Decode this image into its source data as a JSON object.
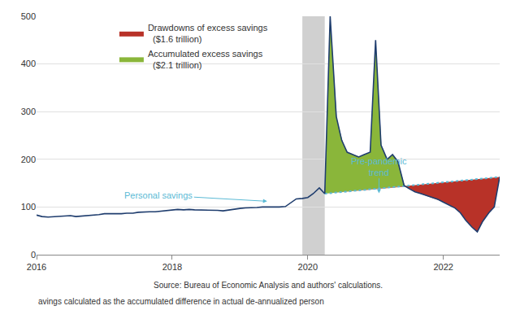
{
  "chart_data": {
    "type": "line",
    "x": [
      2016.0,
      2016.08,
      2016.17,
      2016.25,
      2016.33,
      2016.42,
      2016.5,
      2016.58,
      2016.67,
      2016.75,
      2016.83,
      2016.92,
      2017.0,
      2017.08,
      2017.17,
      2017.25,
      2017.33,
      2017.42,
      2017.5,
      2017.58,
      2017.67,
      2017.75,
      2017.83,
      2017.92,
      2018.0,
      2018.08,
      2018.17,
      2018.25,
      2018.33,
      2018.42,
      2018.5,
      2018.58,
      2018.67,
      2018.75,
      2018.83,
      2018.92,
      2019.0,
      2019.08,
      2019.17,
      2019.25,
      2019.33,
      2019.42,
      2019.5,
      2019.58,
      2019.67,
      2019.75,
      2019.83,
      2019.92,
      2020.0,
      2020.08,
      2020.17,
      2020.25,
      2020.33,
      2020.42,
      2020.5,
      2020.58,
      2020.67,
      2020.75,
      2020.83,
      2020.92,
      2021.0,
      2021.08,
      2021.17,
      2021.25,
      2021.33,
      2021.42,
      2021.5,
      2021.58,
      2021.67,
      2021.75,
      2021.83,
      2021.92,
      2022.0,
      2022.08,
      2022.17,
      2022.25,
      2022.33,
      2022.42,
      2022.5,
      2022.58,
      2022.67,
      2022.75,
      2022.83
    ],
    "series": [
      {
        "color": "#1f3d6e",
        "values": [
          83,
          80,
          79,
          80,
          80,
          81,
          82,
          80,
          81,
          82,
          82,
          84,
          86,
          86,
          85,
          86,
          87,
          87,
          89,
          90,
          90,
          90,
          91,
          92,
          93,
          95,
          94,
          95,
          94,
          94,
          94,
          93,
          93,
          92,
          94,
          95,
          97,
          98,
          98,
          99,
          100,
          100,
          99,
          100,
          101,
          109,
          117,
          118,
          120,
          128,
          140,
          128,
          500,
          290,
          240,
          215,
          210,
          205,
          210,
          215,
          450,
          230,
          200,
          210,
          195,
          145,
          138,
          132,
          128,
          124,
          120,
          116,
          110,
          104,
          98,
          88,
          72,
          58,
          48,
          70,
          88,
          100,
          163
        ]
      }
    ],
    "trend": {
      "x": [
        2020.25,
        2022.83
      ],
      "values": [
        128,
        163
      ],
      "color": "#5bbad5",
      "line_style": "dotted"
    },
    "band": {
      "x": [
        2019.92,
        2020.25
      ],
      "color": "#c8c8c8"
    },
    "fills": [
      {
        "name": "Accumulated excess savings\n  ($2.1 trillion)",
        "color": "#8ab63a"
      },
      {
        "name": "Drawdowns of excess savings\n  ($1.6 trillion)",
        "color": "#b83228"
      }
    ],
    "xlim": [
      2016.0,
      2022.83
    ],
    "xticks": [
      2016,
      2018,
      2020,
      2022
    ],
    "ylim": [
      0,
      500
    ],
    "yticks": [
      0,
      100,
      200,
      300,
      400,
      500
    ],
    "grid": true,
    "legend": "upper left",
    "annotations": [
      {
        "text": "Personal savings",
        "x": 2019.4,
        "y": 112,
        "text_x": 2017.8,
        "text_y": 125,
        "color": "#5bbad5"
      },
      {
        "text": "Pre-pandemic\ntrend",
        "x": 2021.05,
        "y": 129,
        "text_x": 2021.05,
        "text_y": 185,
        "color": "#5bbad5"
      }
    ],
    "notes": [
      "Source: Bureau of Economic Analysis and authors' calculations.",
      "avings calculated as the accumulated difference in actual de-annualized person"
    ]
  }
}
